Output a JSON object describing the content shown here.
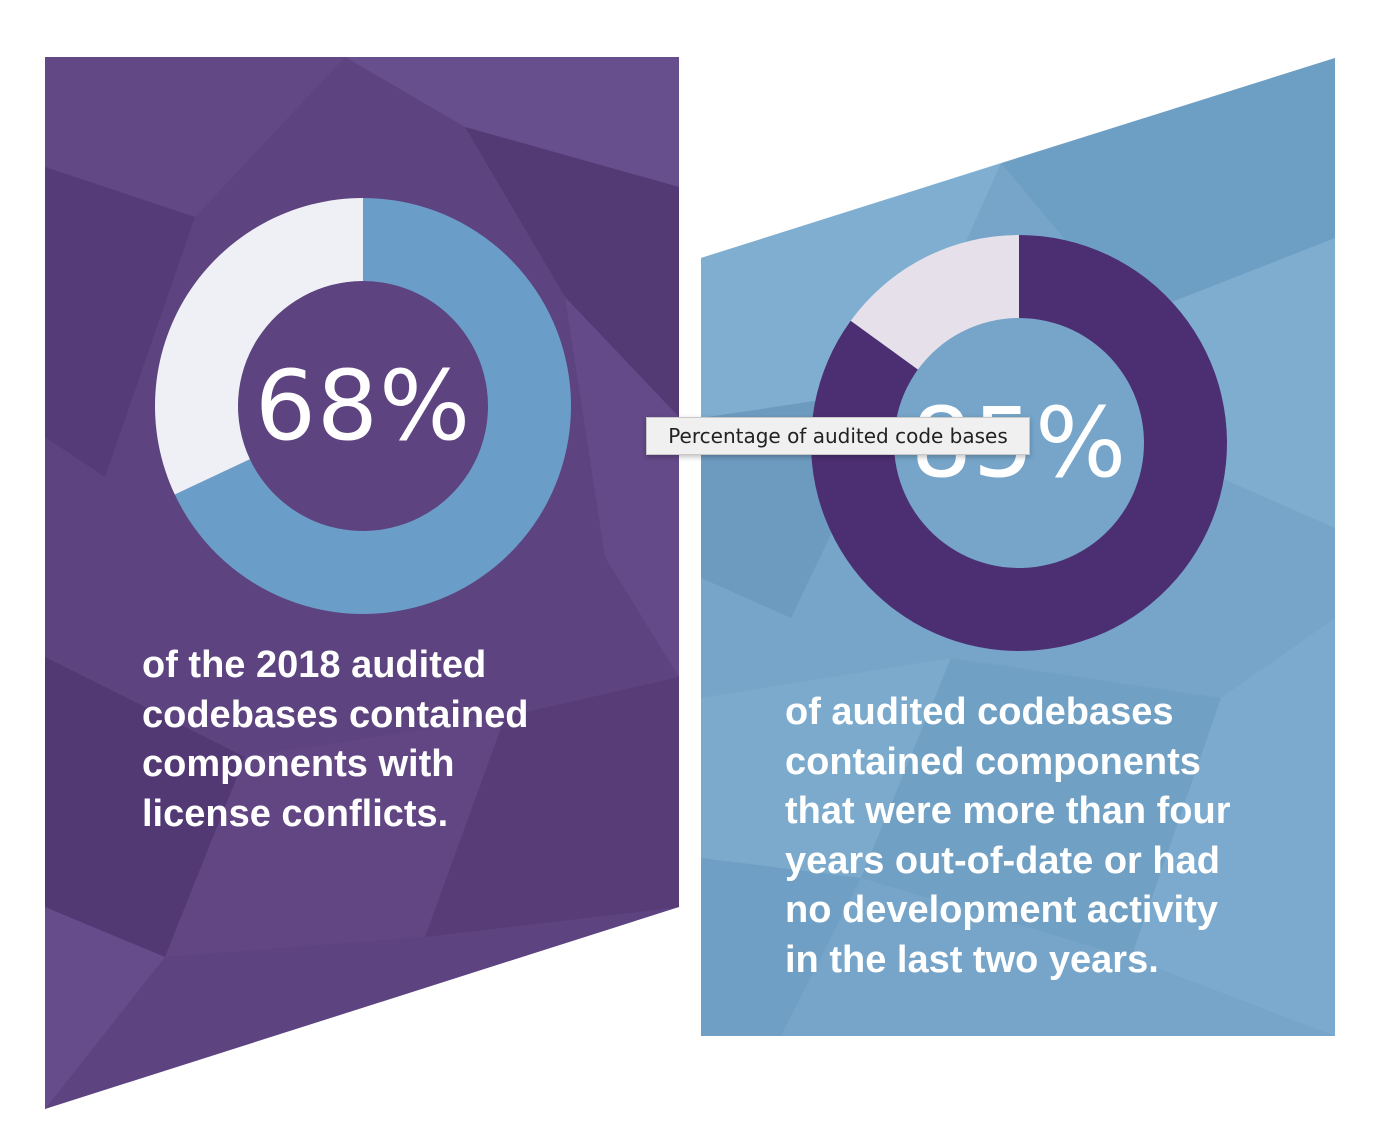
{
  "colors": {
    "purple_bg": "#5d437f",
    "purple_dark": "#4c2f72",
    "blue_bg": "#76a5c9",
    "blue_ring": "#6a9ec8",
    "light_ring": "#eef0f5",
    "light_ring_2": "#e6e0ea"
  },
  "tooltip": {
    "text": "Percentage of audited code bases"
  },
  "chart_data": [
    {
      "type": "pie",
      "style": "donut",
      "values": [
        68,
        32
      ],
      "value_label": "68%",
      "caption": "of the 2018 audited\ncodebases contained\ncomponents with\nlicense conflicts.",
      "colors": [
        "#6a9ec8",
        "#eef0f5"
      ]
    },
    {
      "type": "pie",
      "style": "donut",
      "values": [
        85,
        15
      ],
      "value_label": "85%",
      "caption": "of audited codebases\ncontained components\nthat were more than four\nyears out-of-date or had\nno development activity\nin the last two years.",
      "colors": [
        "#4c2f72",
        "#e6e0ea"
      ]
    }
  ]
}
